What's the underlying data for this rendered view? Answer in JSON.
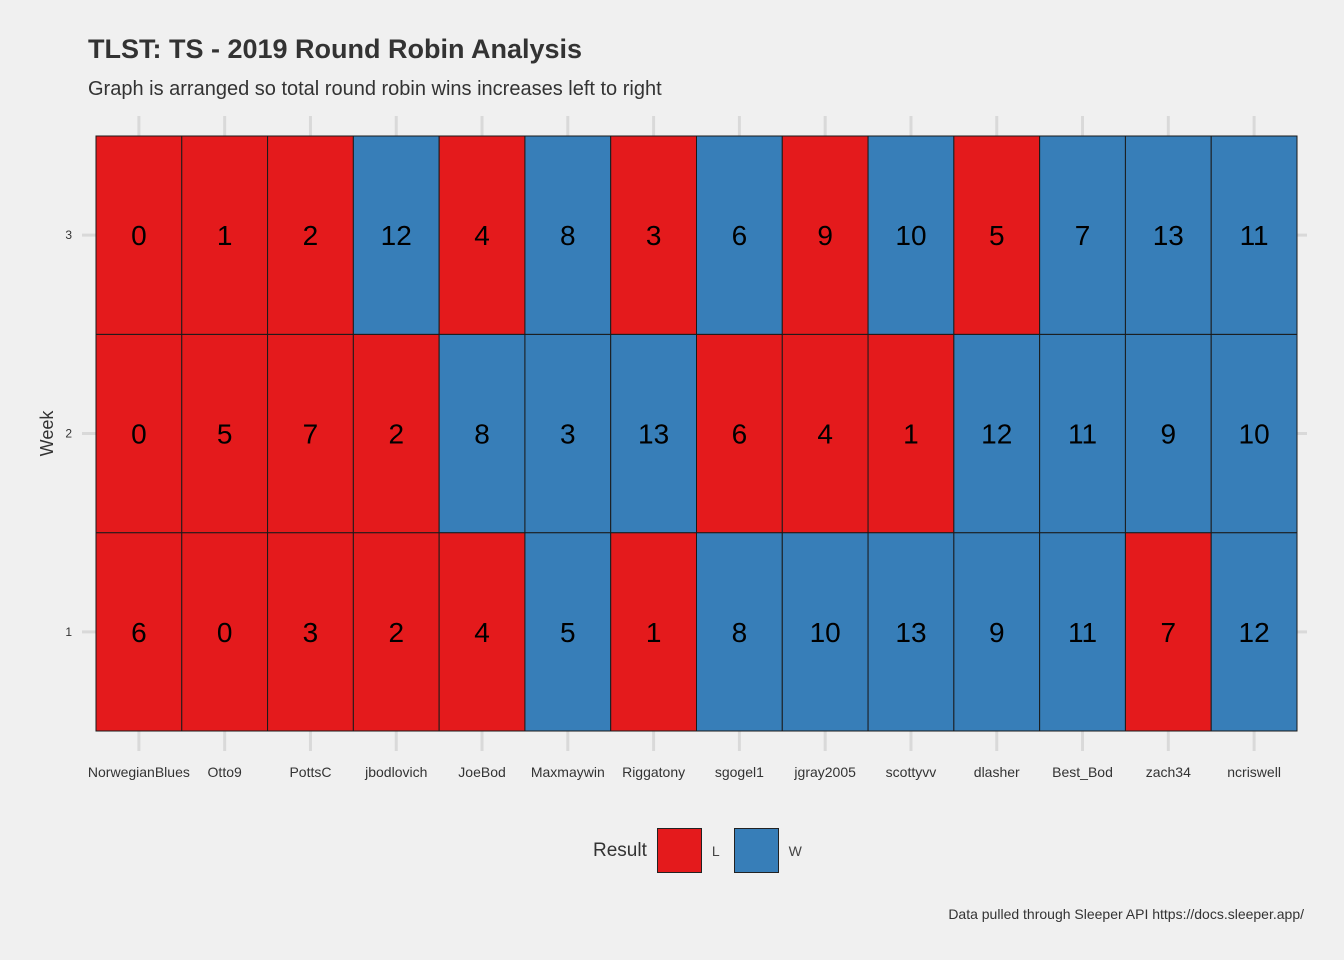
{
  "header": {
    "title": "TLST: TS - 2019 Round Robin Analysis",
    "subtitle": "Graph is arranged so total round robin wins increases left to right"
  },
  "caption": "Data pulled through Sleeper API https://docs.sleeper.app/",
  "legend": {
    "title": "Result",
    "items": [
      {
        "label": "L",
        "color": "#e41a1c"
      },
      {
        "label": "W",
        "color": "#377eb8"
      }
    ]
  },
  "chart_data": {
    "type": "heatmap",
    "title": "TLST: TS - 2019 Round Robin Analysis",
    "subtitle": "Graph is arranged so total round robin wins increases left to right",
    "xlabel": "",
    "ylabel": "Week",
    "x": [
      "NorwegianBlues",
      "Otto9",
      "PottsC",
      "jbodlovich",
      "JoeBod",
      "Maxmaywin",
      "Riggatony",
      "sgogel1",
      "jgray2005",
      "scottyvv",
      "dlasher",
      "Best_Bod",
      "zach34",
      "ncriswell"
    ],
    "y": [
      1,
      2,
      3
    ],
    "values": [
      [
        6,
        0,
        3,
        2,
        4,
        5,
        1,
        8,
        10,
        13,
        9,
        11,
        7,
        12
      ],
      [
        0,
        5,
        7,
        2,
        8,
        3,
        13,
        6,
        4,
        1,
        12,
        11,
        9,
        10
      ],
      [
        0,
        1,
        2,
        12,
        4,
        8,
        3,
        6,
        9,
        10,
        5,
        7,
        13,
        11
      ]
    ],
    "results": [
      [
        "L",
        "L",
        "L",
        "L",
        "L",
        "W",
        "L",
        "W",
        "W",
        "W",
        "W",
        "W",
        "L",
        "W"
      ],
      [
        "L",
        "L",
        "L",
        "L",
        "W",
        "W",
        "W",
        "L",
        "L",
        "L",
        "W",
        "W",
        "W",
        "W"
      ],
      [
        "L",
        "L",
        "L",
        "W",
        "L",
        "W",
        "L",
        "W",
        "L",
        "W",
        "L",
        "W",
        "W",
        "W"
      ]
    ],
    "fill_legend": "Result",
    "colors": {
      "L": "#e41a1c",
      "W": "#377eb8"
    },
    "grid": true,
    "legend_position": "bottom"
  }
}
